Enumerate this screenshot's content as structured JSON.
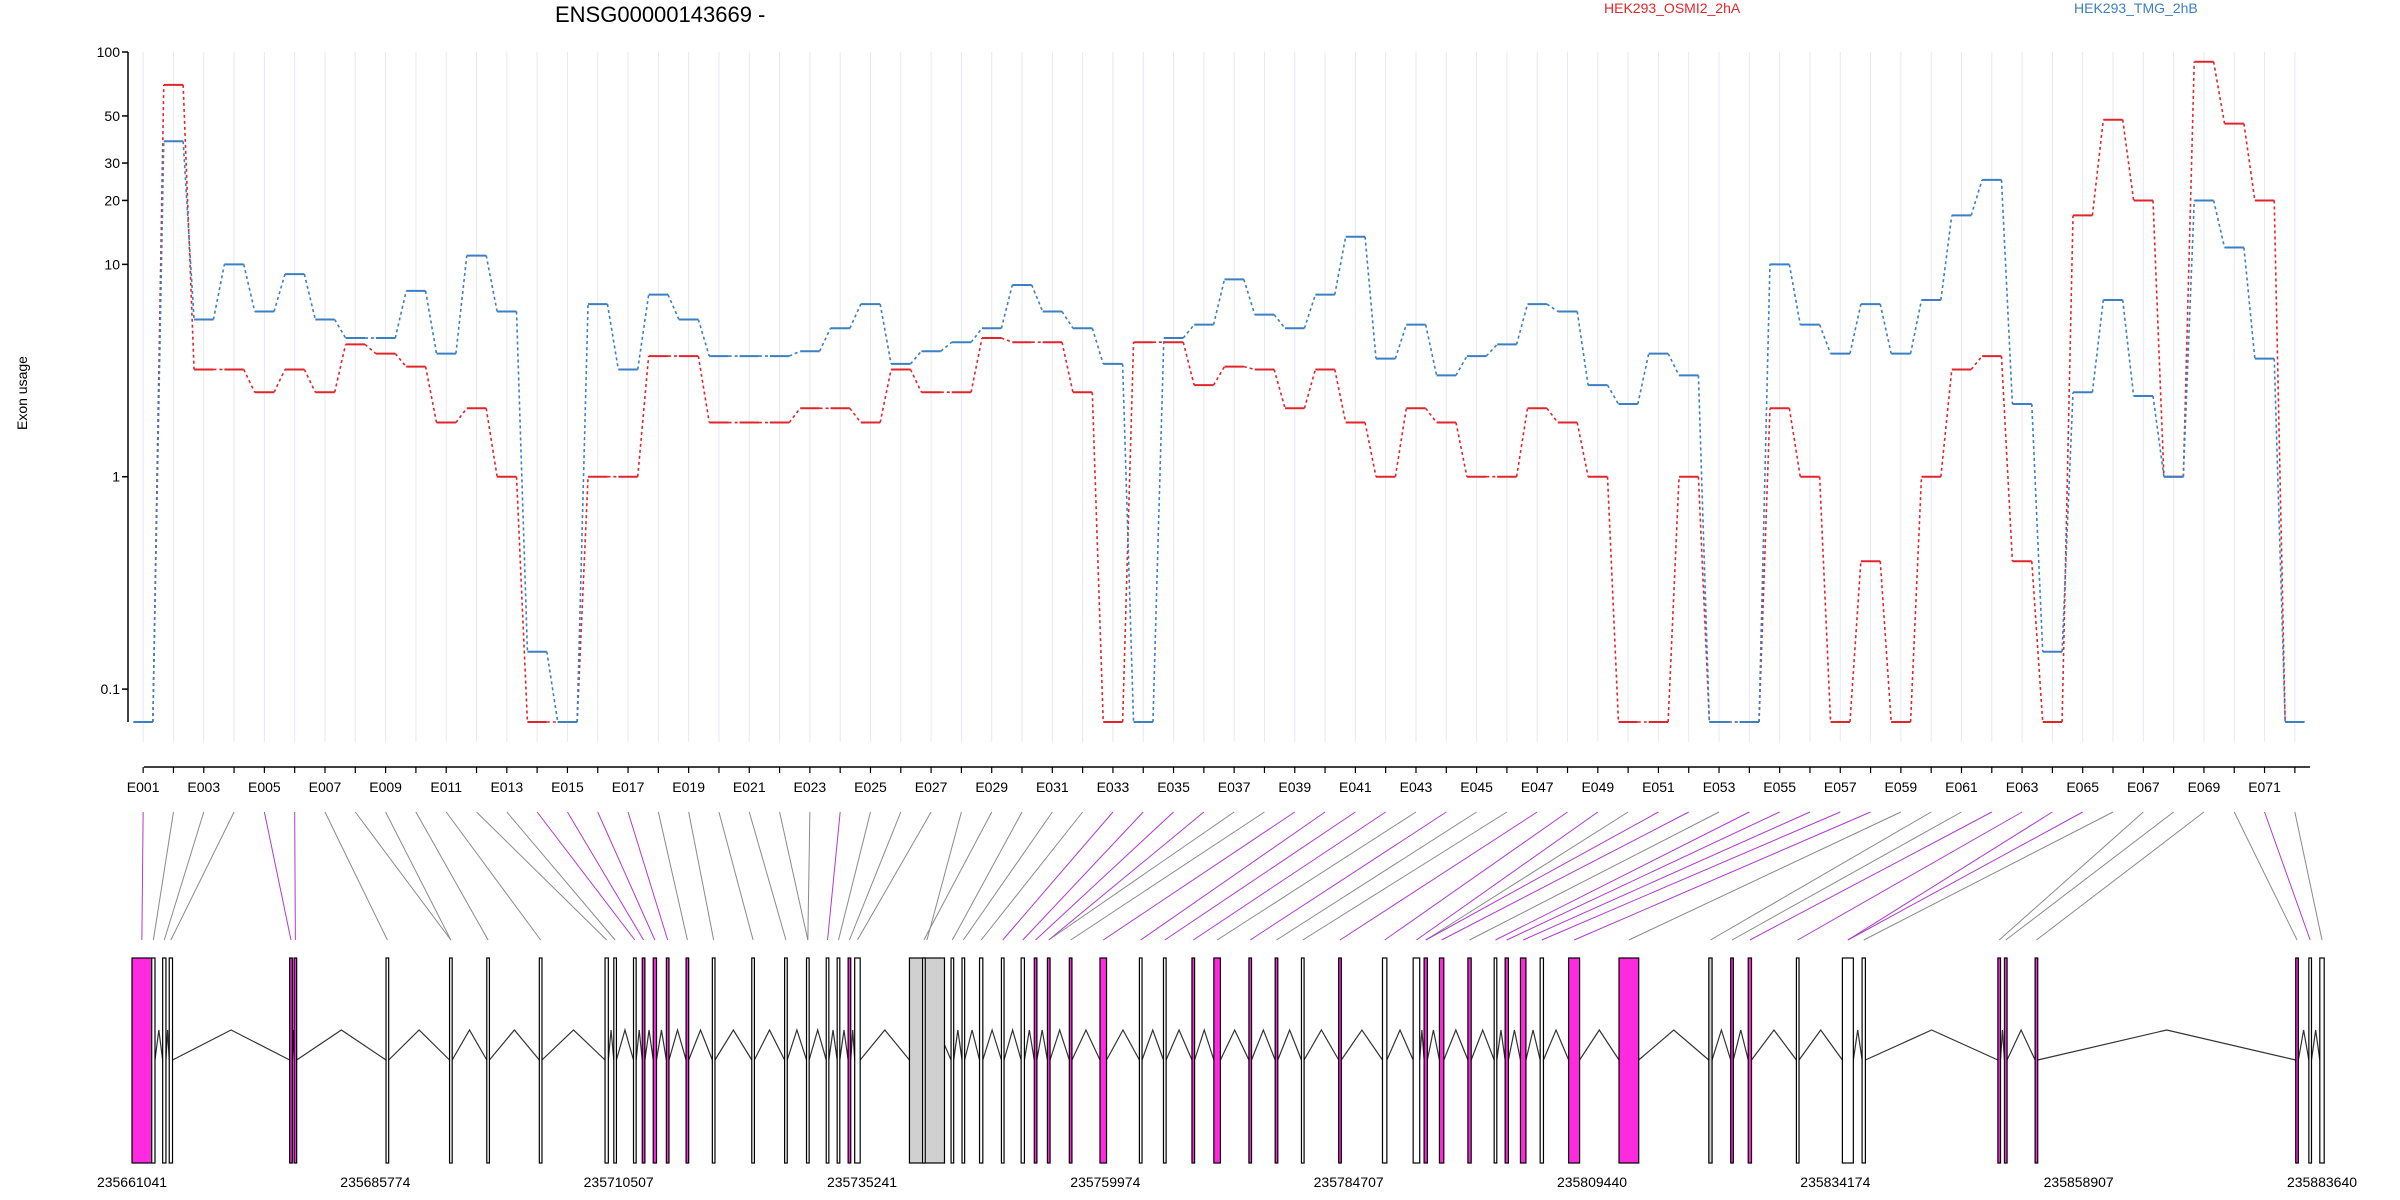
{
  "figure": {
    "title": "ENSG00000143669 -",
    "ylabel": "Exon usage"
  },
  "colors": {
    "series1": "#e0262b",
    "series2": "#3b7fc4",
    "spliced_exon": "#ff2ae0",
    "plain_exon": "#ffffff",
    "grey_exon": "#d0d0d0"
  },
  "chart_data": {
    "type": "line",
    "title": "ENSG00000143669 -",
    "xlabel": "",
    "ylabel": "Exon usage",
    "y_scale": "log",
    "ylim": [
      0.07,
      100
    ],
    "yticks": [
      0.1,
      1,
      10,
      20,
      30,
      50,
      100
    ],
    "ytick_labels": [
      "0.1",
      "1",
      "10",
      "20",
      "30",
      "50",
      "100"
    ],
    "legend_position": "top",
    "categories": [
      "E001",
      "E002",
      "E003",
      "E004",
      "E005",
      "E006",
      "E007",
      "E008",
      "E009",
      "E010",
      "E011",
      "E012",
      "E013",
      "E014",
      "E015",
      "E016",
      "E017",
      "E018",
      "E019",
      "E020",
      "E021",
      "E022",
      "E023",
      "E024",
      "E025",
      "E026",
      "E027",
      "E028",
      "E029",
      "E030",
      "E031",
      "E032",
      "E033",
      "E034",
      "E035",
      "E036",
      "E037",
      "E038",
      "E039",
      "E040",
      "E041",
      "E042",
      "E043",
      "E044",
      "E045",
      "E046",
      "E047",
      "E048",
      "E049",
      "E050",
      "E051",
      "E052",
      "E053",
      "E054",
      "E055",
      "E056",
      "E057",
      "E058",
      "E059",
      "E060",
      "E061",
      "E062",
      "E063",
      "E064",
      "E065",
      "E066",
      "E067",
      "E068",
      "E069",
      "E070",
      "E071",
      "E072"
    ],
    "xtick_labels": [
      "E001",
      "E003",
      "E005",
      "E007",
      "E009",
      "E011",
      "E013",
      "E015",
      "E017",
      "E019",
      "E021",
      "E023",
      "E025",
      "E027",
      "E029",
      "E031",
      "E033",
      "E035",
      "E037",
      "E039",
      "E041",
      "E043",
      "E045",
      "E047",
      "E049",
      "E051",
      "E053",
      "E055",
      "E057",
      "E059",
      "E061",
      "E063",
      "E065",
      "E067",
      "E069",
      "E071"
    ],
    "series": [
      {
        "name": "HEK293_OSMI2_2hA",
        "values": [
          0.07,
          70,
          3.2,
          3.2,
          2.5,
          3.2,
          2.5,
          4.2,
          3.8,
          3.3,
          1.8,
          2.1,
          1.0,
          0.07,
          0.07,
          1.0,
          1.0,
          3.7,
          3.7,
          1.8,
          1.8,
          1.8,
          2.1,
          2.1,
          1.8,
          3.2,
          2.5,
          2.5,
          4.5,
          4.3,
          4.3,
          2.5,
          0.07,
          4.3,
          4.3,
          2.7,
          3.3,
          3.2,
          2.1,
          3.2,
          1.8,
          1.0,
          2.1,
          1.8,
          1.0,
          1.0,
          2.1,
          1.8,
          1.0,
          0.07,
          0.07,
          1.0,
          0.07,
          0.07,
          2.1,
          1.0,
          0.07,
          0.4,
          0.07,
          1.0,
          3.2,
          3.7,
          0.4,
          0.07,
          17,
          48,
          20,
          1.0,
          90,
          46,
          20,
          0.07
        ]
      },
      {
        "name": "HEK293_TMG_2hB",
        "values": [
          0.07,
          38,
          5.5,
          10,
          6,
          9,
          5.5,
          4.5,
          4.5,
          7.5,
          3.8,
          11,
          6,
          0.15,
          0.07,
          6.5,
          3.2,
          7.2,
          5.5,
          3.7,
          3.7,
          3.7,
          3.9,
          5,
          6.5,
          3.4,
          3.9,
          4.3,
          5,
          8,
          6,
          5,
          3.4,
          0.07,
          4.5,
          5.2,
          8.5,
          5.8,
          5,
          7.2,
          13.5,
          3.6,
          5.2,
          3,
          3.7,
          4.2,
          6.5,
          6,
          2.7,
          2.2,
          3.8,
          3.0,
          0.07,
          0.07,
          10,
          5.2,
          3.8,
          6.5,
          3.8,
          6.8,
          17,
          25,
          2.2,
          0.15,
          2.5,
          6.8,
          2.4,
          1.0,
          20,
          12,
          3.6,
          0.07
        ]
      }
    ]
  },
  "gene_model": {
    "coordinate_labels": [
      "235661041",
      "235685774",
      "235710507",
      "235735241",
      "235759974",
      "235784707",
      "235809440",
      "235834174",
      "235858907",
      "235883640"
    ]
  },
  "exon_spliced_flags": [
    1,
    0,
    0,
    0,
    1,
    1,
    0,
    0,
    0,
    0,
    0,
    0,
    0,
    1,
    1,
    1,
    1,
    0,
    0,
    0,
    0,
    0,
    0,
    1,
    0,
    0,
    0,
    0,
    0,
    0,
    0,
    0,
    1,
    1,
    1,
    1,
    0,
    0,
    1,
    1,
    1,
    1,
    0,
    1,
    0,
    0,
    1,
    1,
    1,
    0,
    1,
    1,
    0,
    1,
    1,
    1,
    1,
    1,
    0,
    0,
    0,
    1,
    1,
    1,
    1,
    0,
    0,
    0,
    0,
    0,
    1,
    0
  ]
}
